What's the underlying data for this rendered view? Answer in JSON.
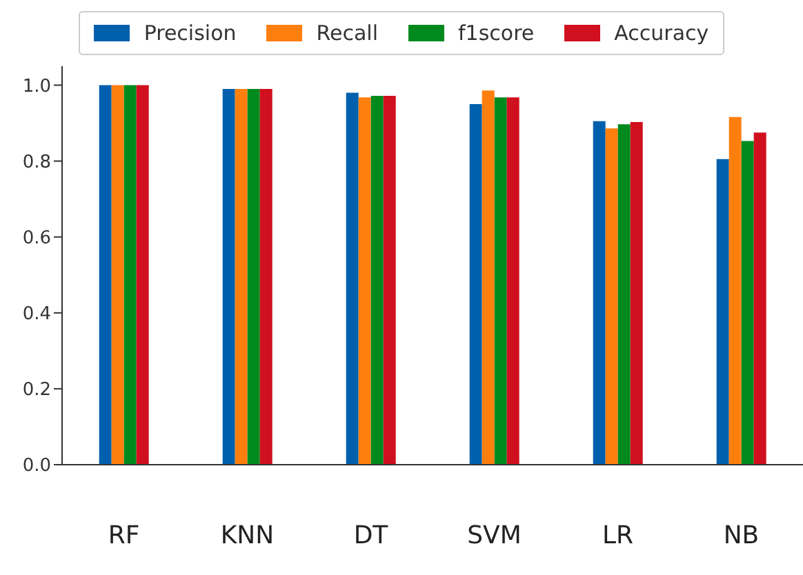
{
  "chart_data": {
    "type": "bar",
    "categories": [
      "RF",
      "KNN",
      "DT",
      "SVM",
      "LR",
      "NB"
    ],
    "series": [
      {
        "name": "Precision",
        "color": "#0060ad",
        "values": [
          1.0,
          0.99,
          0.98,
          0.95,
          0.905,
          0.805
        ]
      },
      {
        "name": "Recall",
        "color": "#ff7f0e",
        "values": [
          1.0,
          0.99,
          0.968,
          0.986,
          0.886,
          0.916
        ]
      },
      {
        "name": "f1score",
        "color": "#008a1e",
        "values": [
          1.0,
          0.99,
          0.972,
          0.968,
          0.897,
          0.853
        ]
      },
      {
        "name": "Accuracy",
        "color": "#d0101e",
        "values": [
          1.0,
          0.99,
          0.972,
          0.968,
          0.903,
          0.875
        ]
      }
    ],
    "ylim": [
      0,
      1.05
    ],
    "yticks": [
      {
        "value": 0,
        "label": "0.0"
      },
      0.2,
      0.4,
      0.6,
      0.8,
      {
        "value": 1,
        "label": "1.0"
      }
    ],
    "grid": false,
    "legend": "top"
  }
}
